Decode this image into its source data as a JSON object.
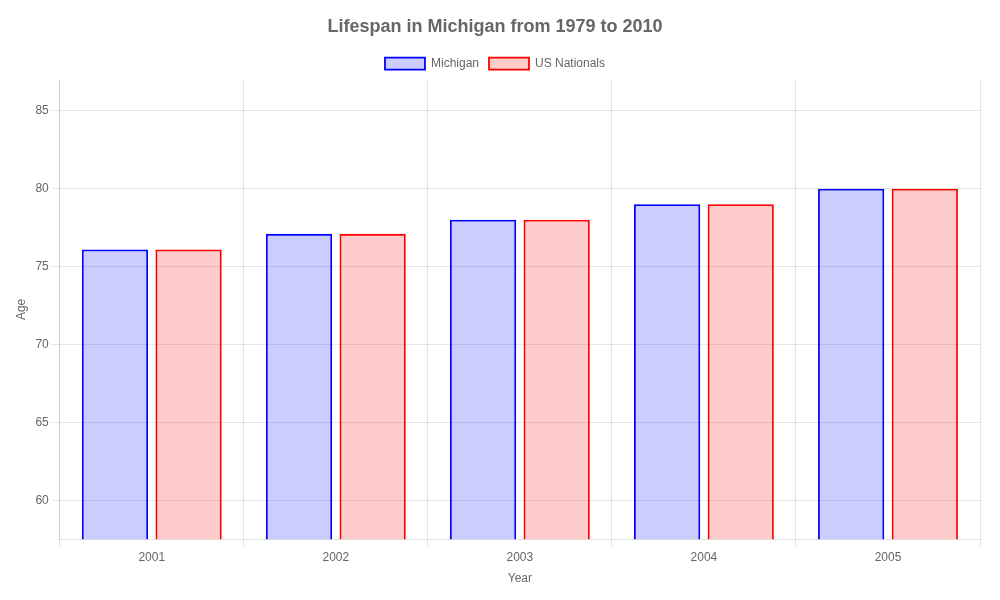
{
  "chart_data": {
    "type": "bar",
    "title": "Lifespan in Michigan from 1979 to 2010",
    "x_label": "Year",
    "y_label": "Age",
    "categories": [
      2001,
      2002,
      2003,
      2004,
      2005
    ],
    "series": [
      {
        "name": "Michigan",
        "color": "#0000ff",
        "values": [
          76.1,
          77.1,
          78.0,
          79.0,
          80.0
        ]
      },
      {
        "name": "US Nationals",
        "color": "#ff0000",
        "values": [
          76.1,
          77.1,
          78.0,
          79.0,
          80.0
        ]
      }
    ],
    "ylim": [
      57.5,
      87
    ],
    "yticks": [
      60,
      65,
      70,
      75,
      80,
      85
    ],
    "grid": true,
    "legend": "top"
  }
}
